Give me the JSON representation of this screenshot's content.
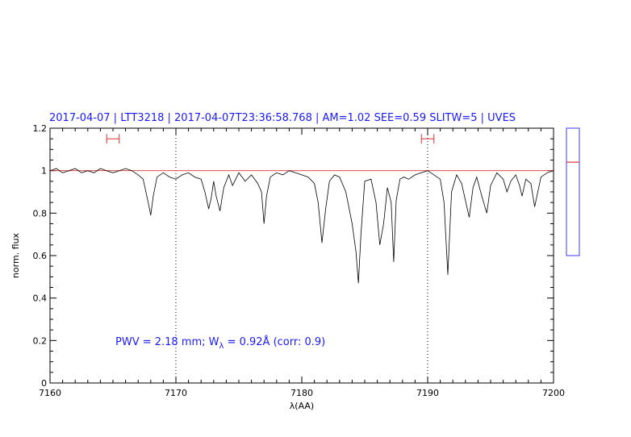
{
  "chart_data": {
    "type": "line",
    "title": "2017-04-07 | LTT3218 | 2017-04-07T23:36:58.768 | AM=1.02 SEE=0.59 SLITW=5 | UVES",
    "xlabel": "λ(AA)",
    "ylabel": "norm. flux",
    "xlim": [
      7160,
      7200
    ],
    "ylim": [
      0,
      1.2
    ],
    "x_ticks": [
      "7160",
      "7170",
      "7180",
      "7190",
      "7200"
    ],
    "y_ticks": [
      "0",
      "0.2",
      "0.4",
      "0.6",
      "0.8",
      "1",
      "1.2"
    ],
    "annotation": {
      "prefix": "PWV = 2.18 mm; W",
      "subscript": "λ",
      "suffix": " = 0.92Å (corr: 0.9)"
    },
    "vlines": [
      7170,
      7190
    ],
    "continuum_level": 1.0,
    "ranges": [
      {
        "x1": 7164.5,
        "x2": 7165.5,
        "y": 1.15
      },
      {
        "x1": 7189.5,
        "x2": 7190.5,
        "y": 1.15
      }
    ],
    "side_indicator": {
      "ymin": 0.6,
      "ymax": 1.2,
      "marker": 1.04
    },
    "series": [
      {
        "color": "#000000",
        "x": [
          7160.0,
          7160.5,
          7161.0,
          7161.5,
          7162.0,
          7162.5,
          7163.0,
          7163.5,
          7164.0,
          7164.5,
          7165.0,
          7165.5,
          7166.0,
          7166.5,
          7167.0,
          7167.4,
          7167.8,
          7168.0,
          7168.2,
          7168.5,
          7169.0,
          7169.5,
          7170.0,
          7170.5,
          7171.0,
          7171.5,
          7172.0,
          7172.3,
          7172.6,
          7172.8,
          7173.0,
          7173.2,
          7173.5,
          7173.8,
          7174.2,
          7174.5,
          7175.0,
          7175.5,
          7176.0,
          7176.5,
          7176.8,
          7177.0,
          7177.2,
          7177.5,
          7178.0,
          7178.5,
          7179.0,
          7179.5,
          7180.0,
          7180.5,
          7181.0,
          7181.3,
          7181.6,
          7181.9,
          7182.2,
          7182.6,
          7183.0,
          7183.5,
          7184.0,
          7184.3,
          7184.5,
          7184.7,
          7185.0,
          7185.5,
          7185.9,
          7186.2,
          7186.5,
          7186.8,
          7187.1,
          7187.3,
          7187.5,
          7187.8,
          7188.1,
          7188.5,
          7189.0,
          7189.5,
          7190.0,
          7190.5,
          7191.0,
          7191.3,
          7191.6,
          7191.9,
          7192.3,
          7192.7,
          7193.0,
          7193.3,
          7193.6,
          7193.9,
          7194.3,
          7194.7,
          7195.0,
          7195.5,
          7196.0,
          7196.3,
          7196.6,
          7197.0,
          7197.3,
          7197.5,
          7197.8,
          7198.2,
          7198.5,
          7199.0,
          7199.5,
          7200.0
        ],
        "y": [
          1.0,
          1.01,
          0.99,
          1.0,
          1.01,
          0.99,
          1.0,
          0.99,
          1.01,
          1.0,
          0.99,
          1.0,
          1.01,
          1.0,
          0.98,
          0.96,
          0.85,
          0.79,
          0.88,
          0.97,
          0.99,
          0.97,
          0.96,
          0.98,
          0.99,
          0.97,
          0.96,
          0.9,
          0.82,
          0.87,
          0.95,
          0.88,
          0.81,
          0.92,
          0.98,
          0.93,
          0.99,
          0.95,
          0.98,
          0.94,
          0.9,
          0.75,
          0.88,
          0.97,
          0.99,
          0.98,
          1.0,
          0.99,
          0.98,
          0.97,
          0.94,
          0.85,
          0.66,
          0.82,
          0.95,
          0.98,
          0.97,
          0.9,
          0.75,
          0.62,
          0.47,
          0.7,
          0.95,
          0.96,
          0.85,
          0.65,
          0.75,
          0.92,
          0.85,
          0.57,
          0.86,
          0.96,
          0.97,
          0.96,
          0.98,
          0.99,
          1.0,
          0.98,
          0.96,
          0.85,
          0.51,
          0.9,
          0.98,
          0.94,
          0.86,
          0.78,
          0.92,
          0.97,
          0.88,
          0.8,
          0.93,
          0.99,
          0.96,
          0.9,
          0.95,
          0.98,
          0.93,
          0.88,
          0.96,
          0.94,
          0.83,
          0.97,
          0.99,
          1.0
        ]
      }
    ]
  }
}
